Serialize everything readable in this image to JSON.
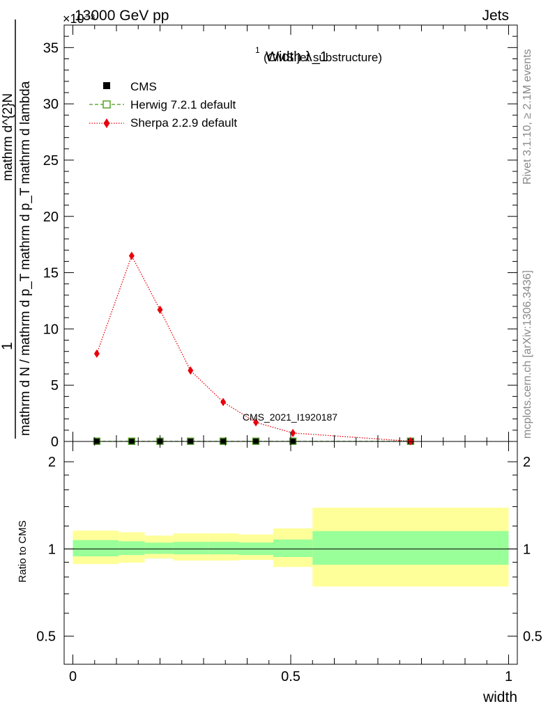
{
  "header": {
    "left": "13000 GeV pp",
    "right": "Jets",
    "exponent": "×10⁻³"
  },
  "side_text": {
    "rivet": "Rivet 3.1.10, ≥ 2.1M events",
    "mcplots": "mcplots.cern.ch [arXiv:1306.3436]"
  },
  "watermark": "CMS_2021_I1920187",
  "chart_data": [
    {
      "type": "line",
      "title": "Width λ_1",
      "title_sup": "1",
      "title_suffix": "(CMS jet substructure)",
      "ylabel_top": "1",
      "ylabel_top_text": "mathrm d^{2}N",
      "ylabel_bottom_text": "mathrm d N / mathrm d p_T mathrm d p_T mathrm d lambda",
      "ylabel_num": "mathrm d",
      "ylabel_num_sup": "2",
      "ylabel_num_tail": "N",
      "ylabel_den": "mathrm d p",
      "ylabel_den_sub": "T",
      "ylabel_den_tail": " mathrm d lambda",
      "ylabel_lhs_num": "1",
      "ylabel_lhs_den": "mathrm d N / mathrm d p",
      "ylabel_lhs_den_sub": "T",
      "ylim": [
        0,
        37
      ],
      "yticks": [
        0,
        5,
        10,
        15,
        20,
        25,
        30,
        35
      ],
      "ytick_labels": [
        "0",
        "5",
        "10",
        "15",
        "20",
        "25",
        "30",
        "35"
      ],
      "xlim": [
        -0.02,
        1.02
      ],
      "legend": {
        "placement": "top-left",
        "entries": [
          {
            "name": "CMS",
            "color": "#000000",
            "marker": "filled-square"
          },
          {
            "name": "Herwig 7.2.1 default",
            "color": "#4a9a1a",
            "marker": "open-square",
            "linestyle": "dashed"
          },
          {
            "name": "Sherpa 2.2.9 default",
            "color": "#e8000b",
            "marker": "diamond",
            "linestyle": "dotted"
          }
        ]
      },
      "series": [
        {
          "name": "CMS",
          "x": [
            0.055,
            0.135,
            0.2,
            0.27,
            0.345,
            0.42,
            0.505,
            0.775
          ],
          "y": [
            0.02,
            0.02,
            0.02,
            0.02,
            0.02,
            0.02,
            0.02,
            0.02
          ]
        },
        {
          "name": "Herwig 7.2.1 default",
          "x": [
            0.055,
            0.135,
            0.2,
            0.27,
            0.345,
            0.42,
            0.505,
            0.775
          ],
          "y": [
            0.02,
            0.02,
            0.02,
            0.02,
            0.02,
            0.02,
            0.02,
            0.02
          ]
        },
        {
          "name": "Sherpa 2.2.9 default",
          "x": [
            0.055,
            0.135,
            0.2,
            0.27,
            0.345,
            0.42,
            0.505,
            0.775
          ],
          "y": [
            7.8,
            16.5,
            11.7,
            6.3,
            3.5,
            1.7,
            0.75,
            0.02
          ]
        }
      ]
    },
    {
      "type": "area",
      "ylabel": "Ratio to CMS",
      "xlabel": "width",
      "ylim": [
        0.4,
        2.35
      ],
      "log_y": true,
      "yticks": [
        0.5,
        1,
        2
      ],
      "ytick_labels": [
        "0.5",
        "1",
        "2"
      ],
      "xlim": [
        -0.02,
        1.02
      ],
      "xticks": [
        0,
        0.5,
        1
      ],
      "xtick_labels": [
        "0",
        "0.5",
        "1"
      ],
      "bands": [
        {
          "x0": 0.0,
          "x1": 0.105,
          "inner": [
            0.943,
            1.073
          ],
          "outer": [
            0.887,
            1.157
          ]
        },
        {
          "x0": 0.105,
          "x1": 0.165,
          "inner": [
            0.953,
            1.063
          ],
          "outer": [
            0.897,
            1.142
          ]
        },
        {
          "x0": 0.165,
          "x1": 0.23,
          "inner": [
            0.962,
            1.052
          ],
          "outer": [
            0.927,
            1.112
          ]
        },
        {
          "x0": 0.23,
          "x1": 0.31,
          "inner": [
            0.958,
            1.058
          ],
          "outer": [
            0.912,
            1.132
          ]
        },
        {
          "x0": 0.31,
          "x1": 0.38,
          "inner": [
            0.958,
            1.058
          ],
          "outer": [
            0.912,
            1.132
          ]
        },
        {
          "x0": 0.38,
          "x1": 0.46,
          "inner": [
            0.953,
            1.053
          ],
          "outer": [
            0.917,
            1.122
          ]
        },
        {
          "x0": 0.46,
          "x1": 0.55,
          "inner": [
            0.938,
            1.078
          ],
          "outer": [
            0.867,
            1.178
          ]
        },
        {
          "x0": 0.55,
          "x1": 1.0,
          "inner": [
            0.882,
            1.153
          ],
          "outer": [
            0.742,
            1.388
          ]
        }
      ],
      "inner_color": "#99ff99",
      "outer_color": "#ffff99"
    }
  ]
}
